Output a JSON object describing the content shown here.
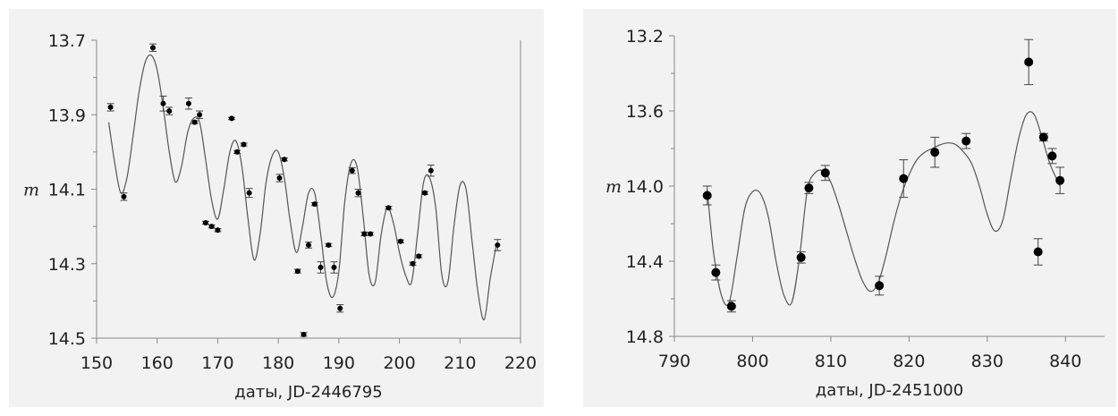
{
  "chart_data": [
    {
      "type": "scatter",
      "xlabel": "даты, JD-2446795",
      "ylabel": "m",
      "xlim": [
        150,
        220
      ],
      "ylim": [
        14.5,
        13.7
      ],
      "y_inverted": true,
      "x_ticks": [
        150,
        160,
        170,
        180,
        190,
        200,
        210,
        220
      ],
      "y_ticks": [
        13.7,
        13.9,
        14.1,
        14.3,
        14.5
      ],
      "marker_color": "#000000",
      "curve_color": "#555555",
      "points": [
        {
          "x": 152.3,
          "y": 13.88,
          "err": 0.01
        },
        {
          "x": 154.5,
          "y": 14.12,
          "err": 0.01
        },
        {
          "x": 159.3,
          "y": 13.72,
          "err": 0.01
        },
        {
          "x": 161.0,
          "y": 13.87,
          "err": 0.02
        },
        {
          "x": 162.0,
          "y": 13.89,
          "err": 0.01
        },
        {
          "x": 165.2,
          "y": 13.87,
          "err": 0.015
        },
        {
          "x": 166.2,
          "y": 13.92,
          "err": 0.004
        },
        {
          "x": 167.0,
          "y": 13.9,
          "err": 0.01
        },
        {
          "x": 168.0,
          "y": 14.19,
          "err": 0.004
        },
        {
          "x": 169.0,
          "y": 14.2,
          "err": 0.004
        },
        {
          "x": 170.0,
          "y": 14.21,
          "err": 0.004
        },
        {
          "x": 172.3,
          "y": 13.91,
          "err": 0.003
        },
        {
          "x": 173.2,
          "y": 14.0,
          "err": 0.004
        },
        {
          "x": 174.3,
          "y": 13.98,
          "err": 0.004
        },
        {
          "x": 175.2,
          "y": 14.11,
          "err": 0.012
        },
        {
          "x": 180.2,
          "y": 14.07,
          "err": 0.01
        },
        {
          "x": 181.0,
          "y": 14.02,
          "err": 0.004
        },
        {
          "x": 183.2,
          "y": 14.32,
          "err": 0.005
        },
        {
          "x": 184.2,
          "y": 14.49,
          "err": 0.005
        },
        {
          "x": 185.0,
          "y": 14.25,
          "err": 0.008
        },
        {
          "x": 186.0,
          "y": 14.14,
          "err": 0.004
        },
        {
          "x": 187.0,
          "y": 14.31,
          "err": 0.015
        },
        {
          "x": 188.3,
          "y": 14.25,
          "err": 0.004
        },
        {
          "x": 189.2,
          "y": 14.31,
          "err": 0.015
        },
        {
          "x": 190.2,
          "y": 14.42,
          "err": 0.01
        },
        {
          "x": 192.2,
          "y": 14.05,
          "err": 0.008
        },
        {
          "x": 193.2,
          "y": 14.11,
          "err": 0.01
        },
        {
          "x": 194.2,
          "y": 14.22,
          "err": 0.005
        },
        {
          "x": 195.2,
          "y": 14.22,
          "err": 0.004
        },
        {
          "x": 198.2,
          "y": 14.15,
          "err": 0.004
        },
        {
          "x": 200.2,
          "y": 14.24,
          "err": 0.004
        },
        {
          "x": 202.2,
          "y": 14.3,
          "err": 0.004
        },
        {
          "x": 203.2,
          "y": 14.28,
          "err": 0.004
        },
        {
          "x": 204.2,
          "y": 14.11,
          "err": 0.004
        },
        {
          "x": 205.2,
          "y": 14.05,
          "err": 0.015
        },
        {
          "x": 216.2,
          "y": 14.25,
          "err": 0.015
        }
      ],
      "fit_curve": {
        "x": [
          152,
          153,
          154,
          155,
          156,
          157,
          158,
          159,
          160,
          161,
          162,
          163,
          164,
          165,
          166,
          167,
          168,
          169,
          170,
          171,
          172,
          173,
          174,
          175,
          176,
          177,
          178,
          179,
          180,
          181,
          182,
          183,
          184,
          185,
          186,
          187,
          188,
          189,
          190,
          191,
          192,
          193,
          194,
          195,
          196,
          197,
          198,
          199,
          200,
          201,
          202,
          203,
          204,
          205,
          206,
          207,
          208,
          209,
          210,
          211,
          212,
          213,
          214,
          215,
          216
        ],
        "y": [
          13.92,
          14.03,
          14.11,
          14.07,
          13.96,
          13.84,
          13.76,
          13.74,
          13.78,
          13.88,
          14.0,
          14.08,
          14.04,
          13.95,
          13.91,
          13.92,
          14.02,
          14.13,
          14.18,
          14.1,
          14.0,
          13.97,
          14.04,
          14.18,
          14.29,
          14.22,
          14.08,
          14.01,
          14.0,
          14.07,
          14.19,
          14.27,
          14.2,
          14.11,
          14.11,
          14.22,
          14.35,
          14.39,
          14.32,
          14.13,
          14.03,
          14.04,
          14.17,
          14.33,
          14.35,
          14.22,
          14.15,
          14.19,
          14.27,
          14.33,
          14.35,
          14.22,
          14.08,
          14.07,
          14.15,
          14.33,
          14.35,
          14.2,
          14.09,
          14.1,
          14.24,
          14.38,
          14.45,
          14.34,
          14.25
        ]
      }
    },
    {
      "type": "scatter",
      "xlabel": "даты, JD-2451000",
      "ylabel": "m",
      "xlim": [
        790,
        845
      ],
      "ylim": [
        14.8,
        13.2
      ],
      "y_inverted": true,
      "x_ticks": [
        790,
        800,
        810,
        820,
        830,
        840
      ],
      "y_ticks": [
        13.2,
        13.6,
        14.0,
        14.4,
        14.8
      ],
      "marker_color": "#000000",
      "curve_color": "#555555",
      "points": [
        {
          "x": 794.2,
          "y": 14.05,
          "err": 0.05
        },
        {
          "x": 795.3,
          "y": 14.46,
          "err": 0.04
        },
        {
          "x": 797.3,
          "y": 14.64,
          "err": 0.03
        },
        {
          "x": 806.2,
          "y": 14.38,
          "err": 0.03
        },
        {
          "x": 807.2,
          "y": 14.01,
          "err": 0.03
        },
        {
          "x": 809.3,
          "y": 13.93,
          "err": 0.04
        },
        {
          "x": 816.2,
          "y": 14.53,
          "err": 0.05
        },
        {
          "x": 819.3,
          "y": 13.96,
          "err": 0.1
        },
        {
          "x": 823.3,
          "y": 13.82,
          "err": 0.08
        },
        {
          "x": 827.3,
          "y": 13.76,
          "err": 0.04
        },
        {
          "x": 835.3,
          "y": 13.34,
          "err": 0.12
        },
        {
          "x": 836.5,
          "y": 14.35,
          "err": 0.07
        },
        {
          "x": 837.2,
          "y": 13.74,
          "err": 0.02
        },
        {
          "x": 838.3,
          "y": 13.84,
          "err": 0.04
        },
        {
          "x": 839.3,
          "y": 13.97,
          "err": 0.07
        }
      ],
      "fit_curve": {
        "x": [
          794.2,
          795,
          796,
          797,
          798,
          799,
          800,
          801,
          802,
          803,
          804,
          805,
          806,
          807,
          808,
          809,
          810,
          811,
          812,
          813,
          814,
          815,
          816,
          817,
          818,
          819,
          820,
          821,
          822,
          823,
          824,
          825,
          826,
          827,
          828,
          829,
          830,
          831,
          832,
          833,
          834,
          835,
          836,
          837,
          838,
          839.3
        ],
        "y": [
          14.02,
          14.35,
          14.58,
          14.62,
          14.38,
          14.12,
          14.03,
          14.04,
          14.16,
          14.4,
          14.58,
          14.62,
          14.38,
          14.02,
          13.93,
          13.92,
          13.98,
          14.1,
          14.24,
          14.38,
          14.5,
          14.56,
          14.52,
          14.38,
          14.2,
          14.05,
          13.94,
          13.86,
          13.82,
          13.8,
          13.78,
          13.77,
          13.78,
          13.82,
          13.88,
          14.0,
          14.15,
          14.24,
          14.18,
          13.96,
          13.75,
          13.62,
          13.62,
          13.74,
          13.88,
          14.0
        ]
      }
    }
  ]
}
